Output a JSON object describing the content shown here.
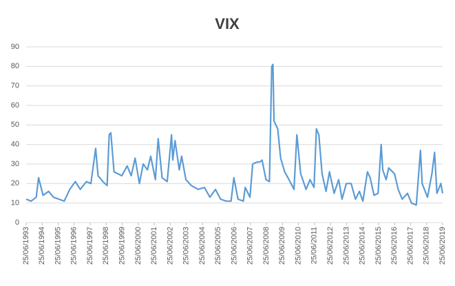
{
  "chart_data": {
    "type": "line",
    "title": "VIX",
    "color": "#5b9bd5",
    "grid": true,
    "ylim": [
      0,
      90
    ],
    "yticks": [
      0,
      10,
      20,
      30,
      40,
      50,
      60,
      70,
      80,
      90
    ],
    "xlim": [
      "1993-06-25",
      "2019-06-25"
    ],
    "xticks": [
      {
        "value": "1993-06-25",
        "label": "25/06/1993"
      },
      {
        "value": "1994-06-25",
        "label": "25/06/1994"
      },
      {
        "value": "1995-06-25",
        "label": "25/06/1995"
      },
      {
        "value": "1996-06-25",
        "label": "25/06/1996"
      },
      {
        "value": "1997-06-25",
        "label": "25/06/1997"
      },
      {
        "value": "1998-06-25",
        "label": "25/06/1998"
      },
      {
        "value": "1999-06-25",
        "label": "25/06/1999"
      },
      {
        "value": "2000-06-25",
        "label": "25/06/2000"
      },
      {
        "value": "2001-06-25",
        "label": "25/06/2001"
      },
      {
        "value": "2002-06-25",
        "label": "25/06/2002"
      },
      {
        "value": "2003-06-25",
        "label": "25/06/2003"
      },
      {
        "value": "2004-06-25",
        "label": "25/06/2004"
      },
      {
        "value": "2005-06-25",
        "label": "25/06/2005"
      },
      {
        "value": "2006-06-25",
        "label": "25/06/2006"
      },
      {
        "value": "2007-06-25",
        "label": "25/06/2007"
      },
      {
        "value": "2008-06-25",
        "label": "25/06/2008"
      },
      {
        "value": "2009-06-25",
        "label": "25/06/2009"
      },
      {
        "value": "2010-06-25",
        "label": "25/06/2010"
      },
      {
        "value": "2011-06-25",
        "label": "25/06/2011"
      },
      {
        "value": "2012-06-25",
        "label": "25/06/2012"
      },
      {
        "value": "2013-06-25",
        "label": "25/06/2013"
      },
      {
        "value": "2014-06-25",
        "label": "25/06/2014"
      },
      {
        "value": "2015-06-25",
        "label": "25/06/2015"
      },
      {
        "value": "2016-06-25",
        "label": "25/06/2016"
      },
      {
        "value": "2017-06-25",
        "label": "25/06/2017"
      },
      {
        "value": "2018-06-25",
        "label": "25/06/2018"
      },
      {
        "value": "2019-06-25",
        "label": "25/06/2019"
      }
    ],
    "x": [
      "1993-06-25",
      "1993-10-15",
      "1994-02-10",
      "1994-04-04",
      "1994-07-15",
      "1994-11-20",
      "1995-03-10",
      "1995-07-10",
      "1995-11-10",
      "1996-03-15",
      "1996-07-20",
      "1996-11-10",
      "1997-03-30",
      "1997-07-10",
      "1997-10-27",
      "1997-12-20",
      "1998-04-10",
      "1998-07-15",
      "1998-08-31",
      "1998-10-08",
      "1998-12-20",
      "1999-03-20",
      "1999-06-15",
      "1999-10-15",
      "2000-01-15",
      "2000-04-14",
      "2000-07-20",
      "2000-10-15",
      "2001-01-20",
      "2001-04-04",
      "2001-07-20",
      "2001-09-21",
      "2001-12-20",
      "2002-04-15",
      "2002-07-23",
      "2002-08-20",
      "2002-10-10",
      "2003-01-15",
      "2003-03-10",
      "2003-06-15",
      "2003-10-15",
      "2004-03-20",
      "2004-08-10",
      "2004-12-15",
      "2005-04-20",
      "2005-08-15",
      "2005-12-15",
      "2006-04-10",
      "2006-06-13",
      "2006-09-15",
      "2007-01-15",
      "2007-02-27",
      "2007-06-15",
      "2007-08-16",
      "2007-11-26",
      "2008-01-22",
      "2008-03-17",
      "2008-06-15",
      "2008-09-01",
      "2008-10-24",
      "2008-11-20",
      "2008-12-15",
      "2009-03-09",
      "2009-05-15",
      "2009-08-15",
      "2009-12-15",
      "2010-03-15",
      "2010-05-20",
      "2010-08-15",
      "2010-12-15",
      "2011-03-15",
      "2011-06-15",
      "2011-08-08",
      "2011-10-03",
      "2011-12-15",
      "2012-03-15",
      "2012-06-01",
      "2012-09-15",
      "2012-12-28",
      "2013-03-15",
      "2013-06-20",
      "2013-10-08",
      "2014-01-15",
      "2014-04-15",
      "2014-07-03",
      "2014-10-15",
      "2014-12-16",
      "2015-03-15",
      "2015-06-15",
      "2015-08-24",
      "2015-09-29",
      "2015-12-15",
      "2016-02-11",
      "2016-06-24",
      "2016-09-15",
      "2016-12-15",
      "2017-04-15",
      "2017-07-15",
      "2017-11-02",
      "2018-02-05",
      "2018-03-15",
      "2018-07-15",
      "2018-10-24",
      "2018-12-24",
      "2019-02-15",
      "2019-05-15",
      "2019-06-25"
    ],
    "values": [
      12,
      11,
      13,
      23,
      14,
      16,
      13,
      12,
      11,
      17,
      21,
      17,
      21,
      20,
      38,
      24,
      21,
      19,
      45,
      46,
      26,
      25,
      24,
      29,
      24,
      33,
      20,
      30,
      27,
      34,
      22,
      43,
      23,
      21,
      45,
      32,
      42,
      27,
      34,
      22,
      19,
      17,
      18,
      13,
      17,
      12,
      11,
      11,
      23,
      12,
      11,
      18,
      13,
      30,
      31,
      31,
      32,
      22,
      21,
      80,
      81,
      52,
      48,
      33,
      26,
      21,
      17,
      45,
      25,
      17,
      22,
      18,
      48,
      45,
      25,
      16,
      26,
      15,
      22,
      12,
      20,
      20,
      12,
      16,
      11,
      26,
      23,
      14,
      15,
      40,
      27,
      22,
      28,
      25,
      17,
      12,
      15,
      10,
      9,
      37,
      20,
      13,
      25,
      36,
      15,
      20,
      15
    ]
  }
}
